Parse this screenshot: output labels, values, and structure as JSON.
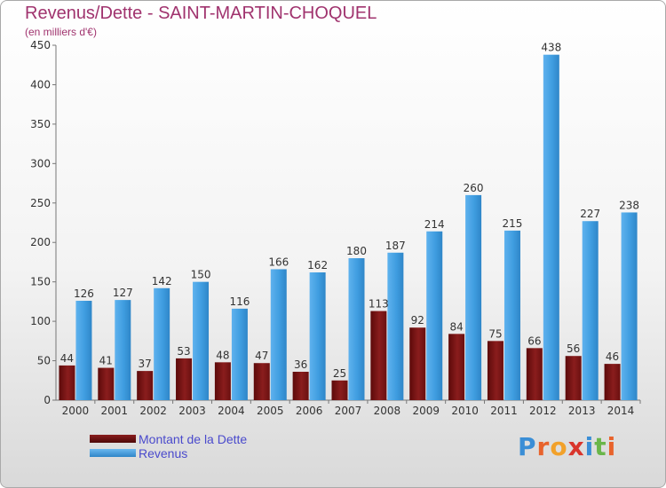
{
  "title": "Revenus/Dette - SAINT-MARTIN-CHOQUEL",
  "subtitle": "(en milliers d'€)",
  "logo": {
    "letters": [
      "P",
      "r",
      "o",
      "x",
      "i",
      "t",
      "i"
    ],
    "colors": [
      "#3a8ed6",
      "#e8632c",
      "#f2a12a",
      "#d9352c",
      "#3a8ed6",
      "#6ab64a",
      "#e8632c"
    ]
  },
  "colors": {
    "dette": "#7a1414",
    "revenus": "#3f9de0"
  },
  "chart_data": {
    "type": "bar",
    "title": "Revenus/Dette - SAINT-MARTIN-CHOQUEL",
    "ylabel": "(en milliers d'€)",
    "categories": [
      "2000",
      "2001",
      "2002",
      "2003",
      "2004",
      "2005",
      "2006",
      "2007",
      "2008",
      "2009",
      "2010",
      "2011",
      "2012",
      "2013",
      "2014"
    ],
    "series": [
      {
        "name": "Montant de la Dette",
        "values": [
          44,
          41,
          37,
          53,
          48,
          47,
          36,
          25,
          113,
          92,
          84,
          75,
          66,
          56,
          46
        ]
      },
      {
        "name": "Revenus",
        "values": [
          126,
          127,
          142,
          150,
          116,
          166,
          162,
          180,
          187,
          214,
          260,
          215,
          438,
          227,
          238
        ]
      }
    ],
    "ylim": [
      0,
      450
    ],
    "yticks": [
      0,
      50,
      100,
      150,
      200,
      250,
      300,
      350,
      400,
      450
    ],
    "grid": false,
    "legend": "bottom-left"
  }
}
